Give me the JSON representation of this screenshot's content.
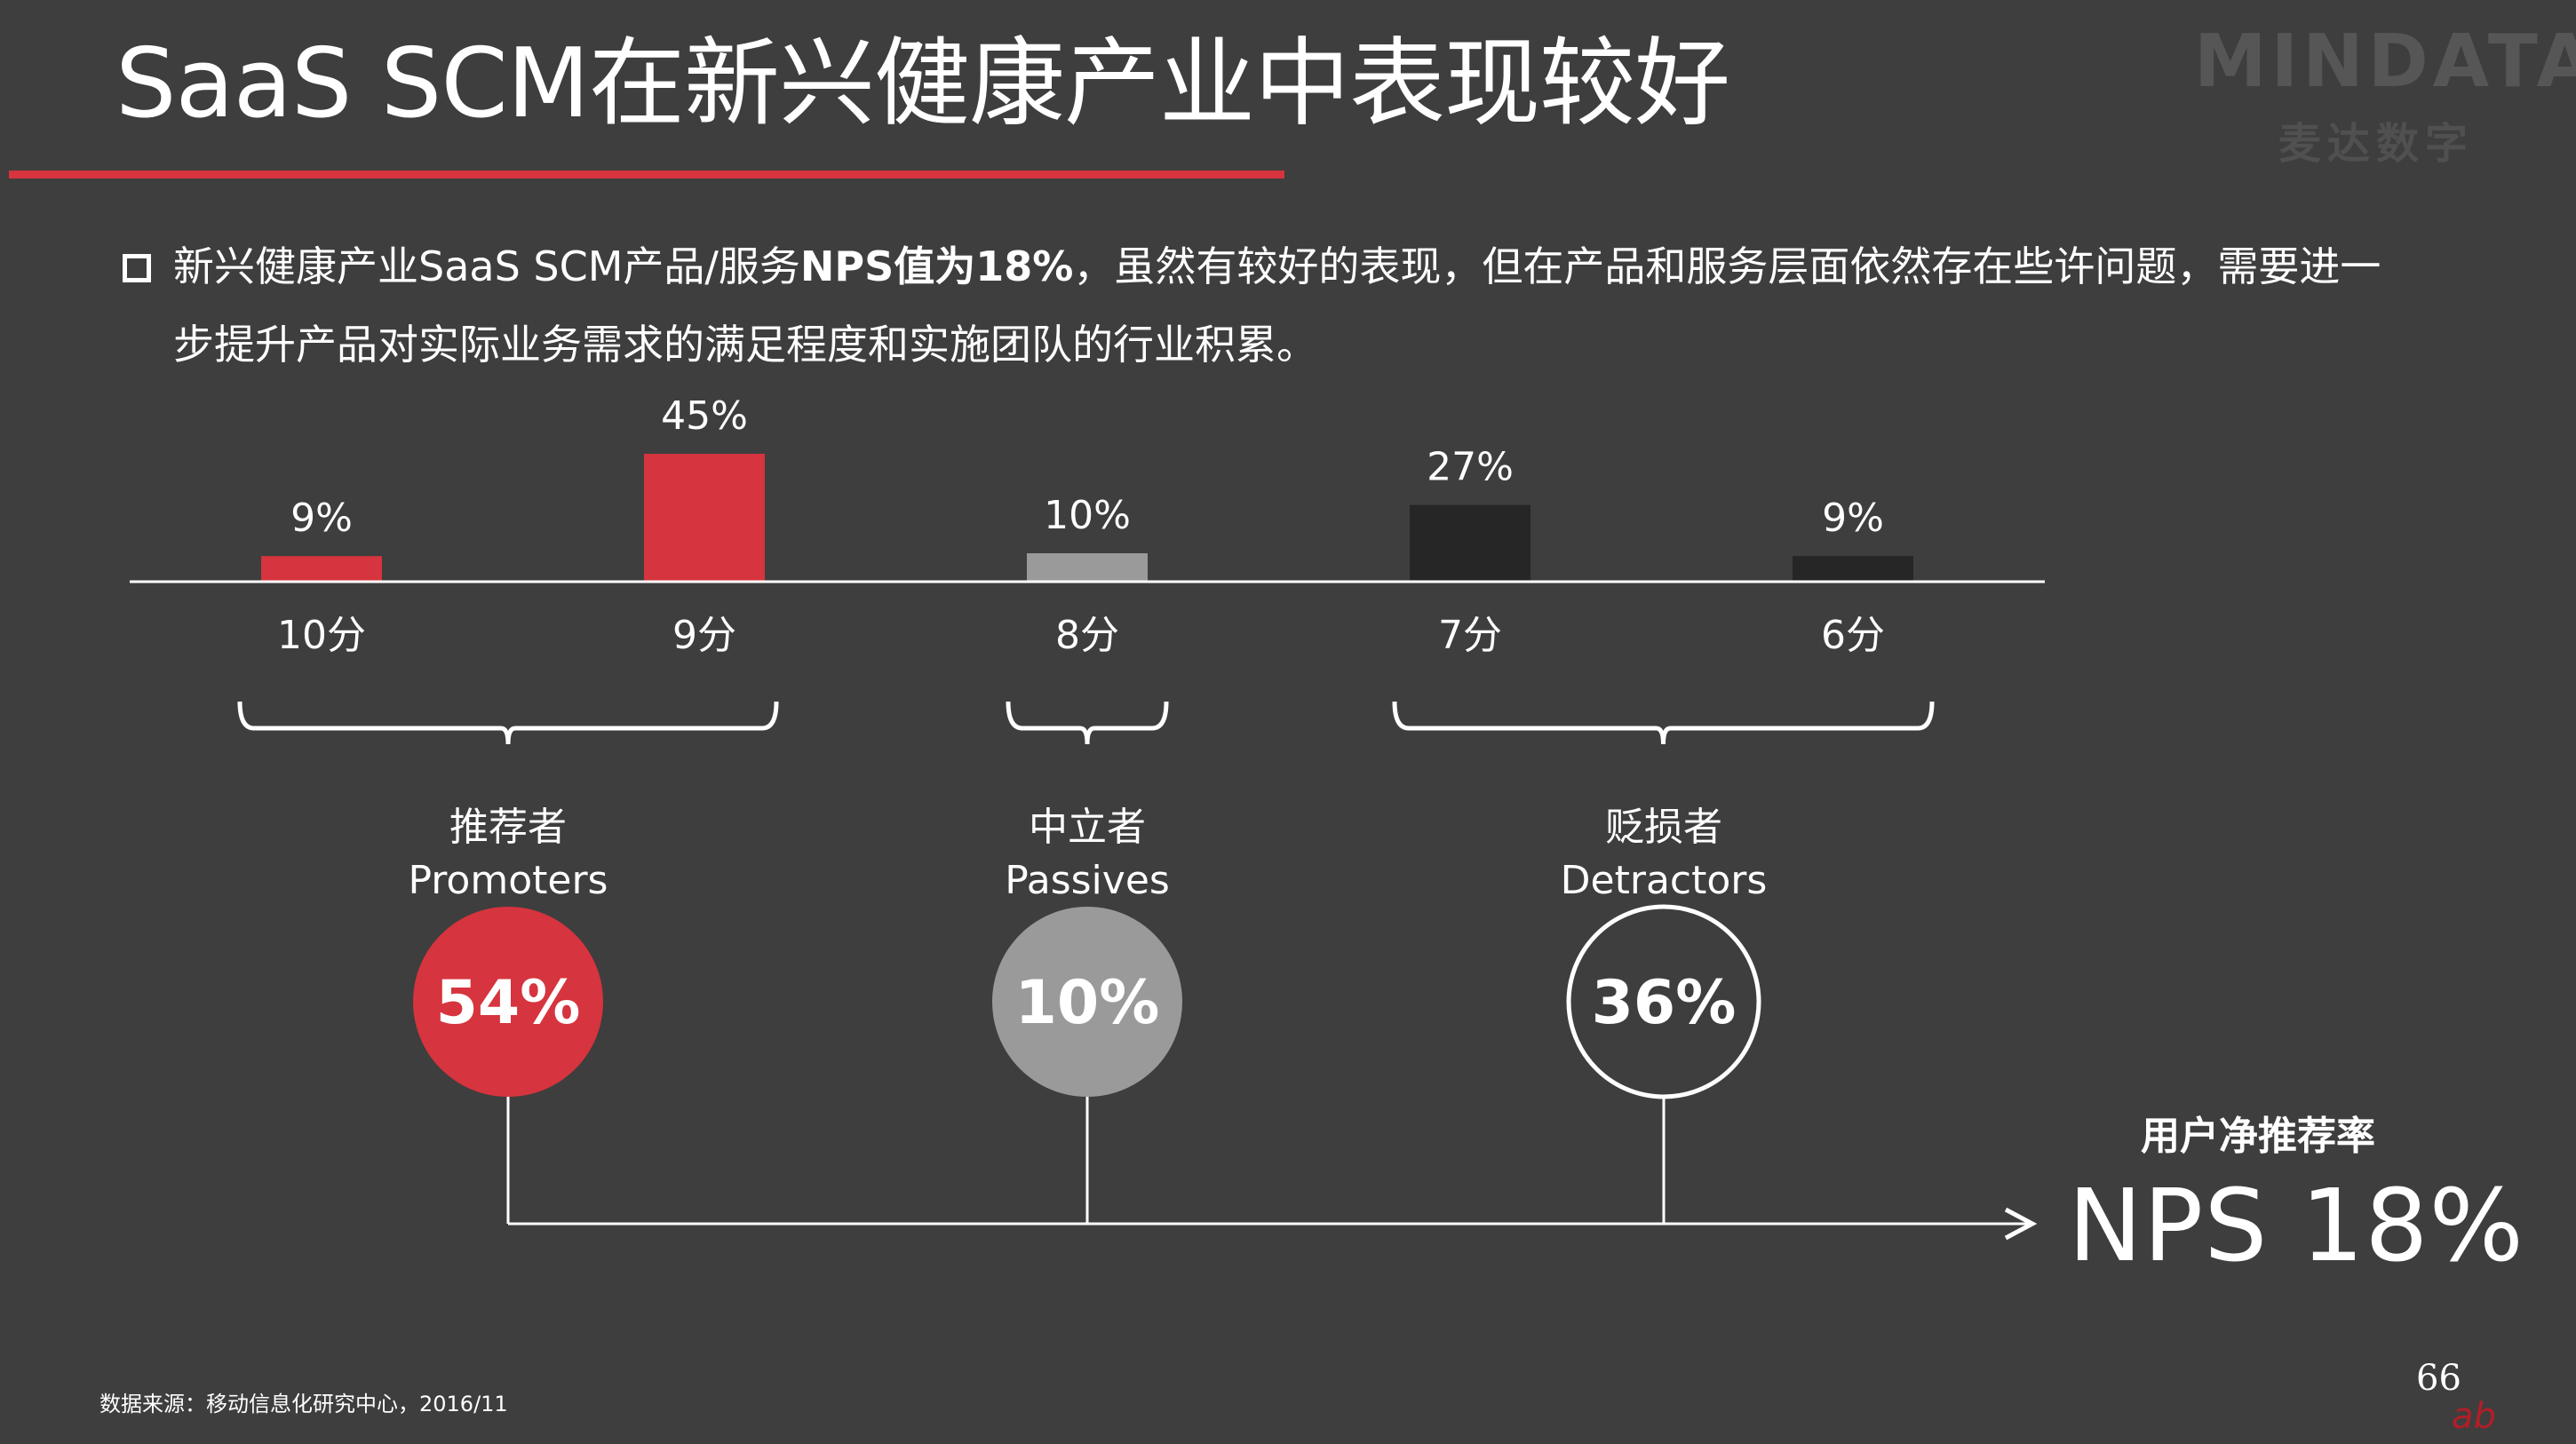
{
  "title": "SaaS SCM在新兴健康产业中表现较好",
  "logo": {
    "name": "MINDATA",
    "subtitle": "麦达数字"
  },
  "bullet": {
    "line1_pre": "新兴健康产业SaaS SCM产品/服务",
    "line1_bold": "NPS值为18%",
    "line1_post": "，虽然有较好的表现，但在产品和服务层面依然存在些许问题，需要进一",
    "line2": "步提升产品对实际业务需求的满足程度和实施团队的行业积累。"
  },
  "chart_data": {
    "type": "bar",
    "categories": [
      "10分",
      "9分",
      "8分",
      "7分",
      "6分"
    ],
    "values": [
      9,
      45,
      10,
      27,
      9
    ],
    "value_labels": [
      "9%",
      "45%",
      "10%",
      "27%",
      "9%"
    ],
    "unit": "%",
    "bar_colors": [
      "#d6343e",
      "#d6343e",
      "#9a9a9a",
      "#262626",
      "#262626"
    ],
    "groups": [
      {
        "name_cn": "推荐者",
        "name_en": "Promoters",
        "value": "54%",
        "color": "#d6343e",
        "style": "filled"
      },
      {
        "name_cn": "中立者",
        "name_en": "Passives",
        "value": "10%",
        "color": "#9a9a9a",
        "style": "filled"
      },
      {
        "name_cn": "贬损者",
        "name_en": "Detractors",
        "value": "36%",
        "color": "#ffffff",
        "style": "outline"
      }
    ]
  },
  "nps": {
    "label": "用户净推荐率",
    "value": "NPS  18%"
  },
  "footnote": "数据来源：移动信息化研究中心，2016/11",
  "page_number": "66",
  "colors": {
    "background": "#3e3e3e",
    "accent": "#d6343e",
    "text": "#ffffff"
  }
}
